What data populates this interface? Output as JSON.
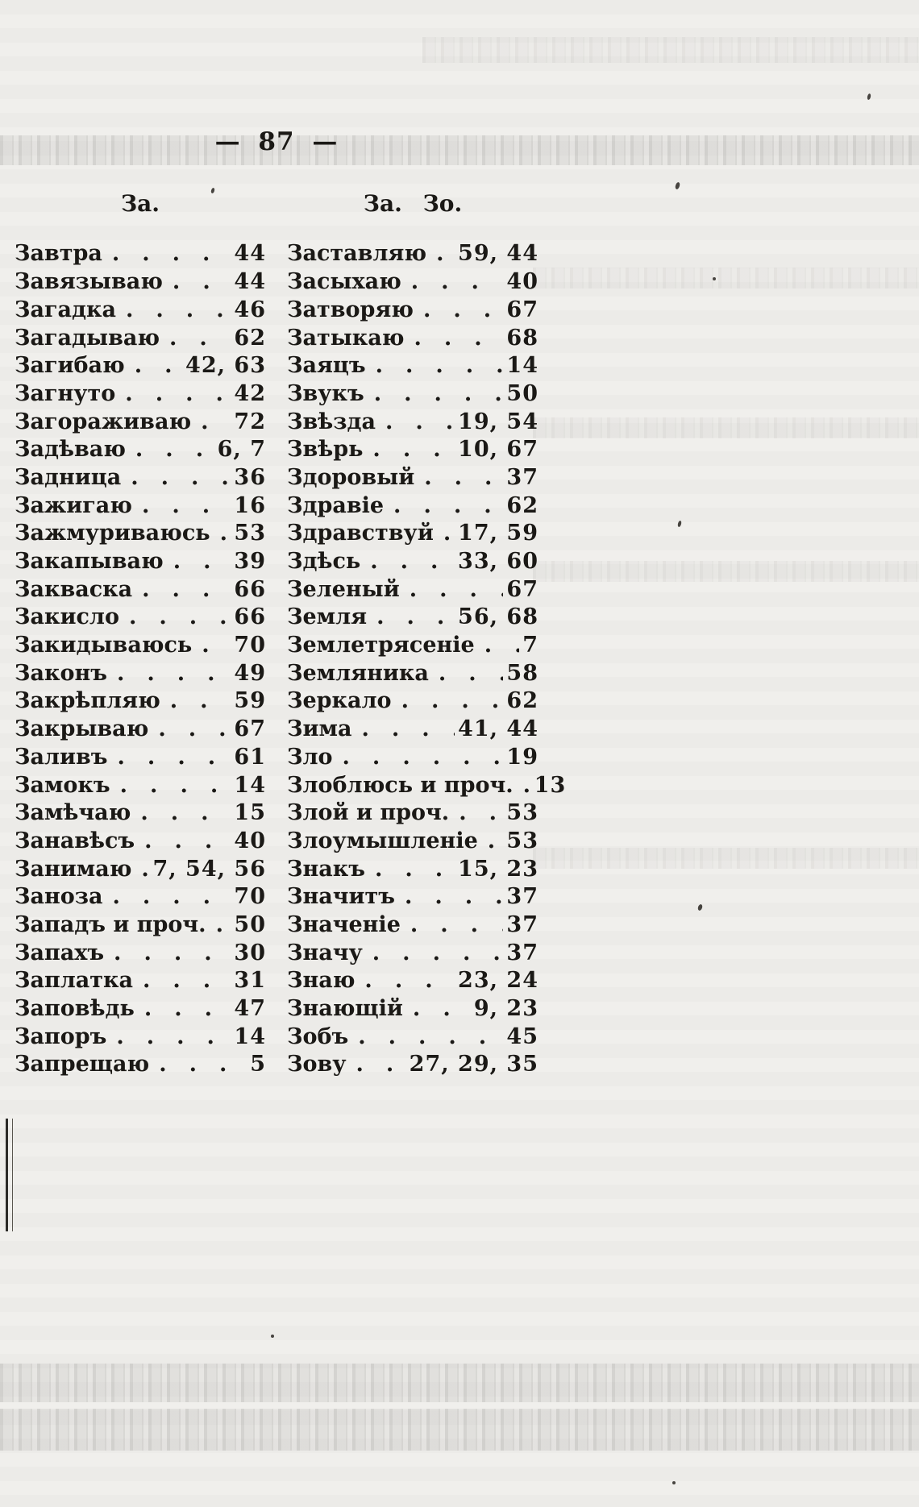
{
  "page": {
    "number_display": "— 87 —"
  },
  "colors": {
    "paper": "#f0efec",
    "ink": "#1b1916"
  },
  "columns": [
    {
      "header": "За.",
      "entries": [
        {
          "word": "Завтра",
          "pages": "44"
        },
        {
          "word": "Завязываю",
          "pages": "44"
        },
        {
          "word": "Загадка",
          "pages": "46"
        },
        {
          "word": "Загадываю",
          "pages": "62"
        },
        {
          "word": "Загибаю",
          "pages": "42, 63"
        },
        {
          "word": "Загнуто",
          "pages": "42"
        },
        {
          "word": "Загораживаю",
          "pages": "72"
        },
        {
          "word": "Задѣваю",
          "pages": "6, 7"
        },
        {
          "word": "Задница",
          "pages": "36"
        },
        {
          "word": "Зажигаю",
          "pages": "16"
        },
        {
          "word": "Зажмуриваюсь",
          "pages": "53"
        },
        {
          "word": "Закапываю",
          "pages": "39"
        },
        {
          "word": "Закваска",
          "pages": "66"
        },
        {
          "word": "Закисло",
          "pages": "66"
        },
        {
          "word": "Закидываюсь",
          "pages": "70"
        },
        {
          "word": "Законъ",
          "pages": "49"
        },
        {
          "word": "Закрѣпляю",
          "pages": "59"
        },
        {
          "word": "Закрываю",
          "pages": "67"
        },
        {
          "word": "Заливъ",
          "pages": "61"
        },
        {
          "word": "Замокъ",
          "pages": "14"
        },
        {
          "word": "Замѣчаю",
          "pages": "15"
        },
        {
          "word": "Занавѣсъ",
          "pages": "40"
        },
        {
          "word": "Занимаю",
          "pages": "7, 54, 56"
        },
        {
          "word": "Заноза",
          "pages": "70"
        },
        {
          "word": "Западъ и проч.",
          "pages": "50"
        },
        {
          "word": "Запахъ",
          "pages": "30"
        },
        {
          "word": "Заплатка",
          "pages": "31"
        },
        {
          "word": "Заповѣдь",
          "pages": "47"
        },
        {
          "word": "Запоръ",
          "pages": "14"
        },
        {
          "word": "Запрещаю",
          "pages": "5"
        }
      ]
    },
    {
      "header": "За. Зо.",
      "entries": [
        {
          "word": "Заставляю",
          "pages": "59, 44"
        },
        {
          "word": "Засыхаю",
          "pages": "40"
        },
        {
          "word": "Затворяю",
          "pages": "67"
        },
        {
          "word": "Затыкаю",
          "pages": "68"
        },
        {
          "word": "Заяцъ",
          "pages": "14"
        },
        {
          "word": "Звукъ",
          "pages": "50"
        },
        {
          "word": "Звѣзда",
          "pages": "19, 54"
        },
        {
          "word": "Звѣрь",
          "pages": "10, 67"
        },
        {
          "word": "Здоровый",
          "pages": "37"
        },
        {
          "word": "Здравіе",
          "pages": "62"
        },
        {
          "word": "Здравствуй",
          "pages": "17, 59"
        },
        {
          "word": "Здѣсь",
          "pages": "33, 60"
        },
        {
          "word": "Зеленый",
          "pages": "67"
        },
        {
          "word": "Земля",
          "pages": "56, 68"
        },
        {
          "word": "Землетрясеніе",
          "pages": "7"
        },
        {
          "word": "Земляника",
          "pages": "58"
        },
        {
          "word": "Зеркало",
          "pages": "62"
        },
        {
          "word": "Зима",
          "pages": "41, 44"
        },
        {
          "word": "Зло",
          "pages": "19"
        },
        {
          "word": "Злоблюсь и проч.",
          "pages": "13"
        },
        {
          "word": "Злой и проч.",
          "pages": "53"
        },
        {
          "word": "Злоумышленіе",
          "pages": "53"
        },
        {
          "word": "Знакъ",
          "pages": "15, 23"
        },
        {
          "word": "Значитъ",
          "pages": "37"
        },
        {
          "word": "Значеніе",
          "pages": "37"
        },
        {
          "word": "Значу",
          "pages": "37"
        },
        {
          "word": "Знаю",
          "pages": "23, 24"
        },
        {
          "word": "Знающій",
          "pages": "9, 23"
        },
        {
          "word": "Зобъ",
          "pages": "45"
        },
        {
          "word": "Зову",
          "pages": "27, 29, 35"
        }
      ]
    }
  ]
}
